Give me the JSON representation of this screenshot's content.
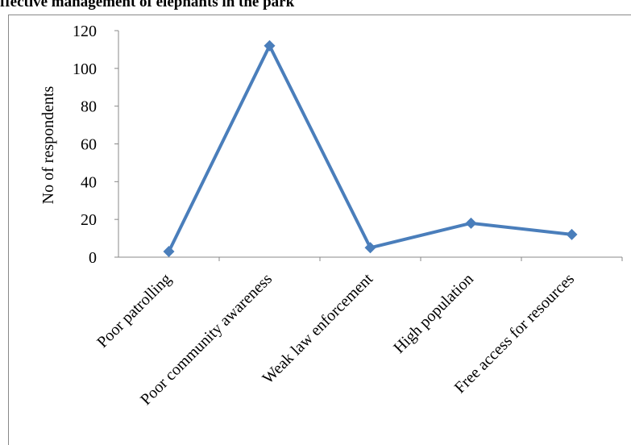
{
  "chart_data": {
    "type": "line",
    "title": "ffective management of elephants in the park",
    "y_label": "No of respondents",
    "categories": [
      "Poor patrolling",
      "Poor community awareness",
      "Weak law enforcement",
      "High population",
      "Free access for resources"
    ],
    "series": [
      {
        "name": "No of respondents",
        "color": "#4a7ebb",
        "values": [
          3,
          112,
          5,
          18,
          12
        ]
      }
    ],
    "ylim": [
      0,
      120
    ],
    "yticks": [
      0,
      20,
      40,
      60,
      80,
      100,
      120
    ],
    "grid": false
  }
}
